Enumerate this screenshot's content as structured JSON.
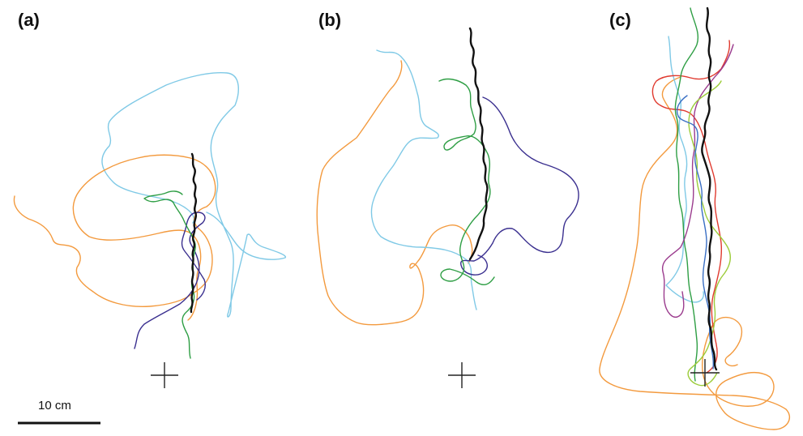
{
  "panels": [
    {
      "id": "a",
      "label": "(a)"
    },
    {
      "id": "b",
      "label": "(b)"
    },
    {
      "id": "c",
      "label": "(c)"
    }
  ],
  "scale_bar": {
    "label": "10 cm"
  },
  "colors": {
    "black": "#111111",
    "orange": "#f39a3e",
    "light_blue": "#7fc9e6",
    "green": "#2e9e44",
    "dark_blue": "#3a2f8f",
    "red": "#e03a2f",
    "purple": "#9b3c8e",
    "lime": "#9ccc3a",
    "blue": "#3a6fc4",
    "cross": "#222222"
  }
}
